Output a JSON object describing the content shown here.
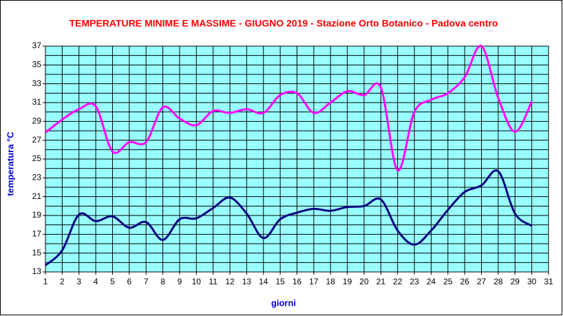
{
  "chart_data": {
    "type": "line",
    "title": "TEMPERATURE MINIME E MASSIME  - GIUGNO 2019 - Stazione Orto Botanico - Padova centro",
    "x_label": "giorni",
    "y_label": "temperatura °C",
    "x": [
      1,
      2,
      3,
      4,
      5,
      6,
      7,
      8,
      9,
      10,
      11,
      12,
      13,
      14,
      15,
      16,
      17,
      18,
      19,
      20,
      21,
      22,
      23,
      24,
      25,
      26,
      27,
      28,
      29,
      30
    ],
    "series": [
      {
        "color": "#ff00ff",
        "values": [
          27.8,
          29.2,
          30.3,
          30.6,
          25.8,
          26.8,
          26.8,
          30.5,
          29.3,
          28.6,
          30.1,
          29.9,
          30.3,
          29.9,
          31.8,
          32.0,
          29.9,
          31.0,
          32.2,
          31.8,
          32.6,
          23.8,
          30.0,
          31.3,
          32.0,
          33.7,
          37.0,
          31.5,
          27.9,
          31.1
        ]
      },
      {
        "color": "#000080",
        "values": [
          13.7,
          15.3,
          19.1,
          18.4,
          18.9,
          17.7,
          18.3,
          16.4,
          18.6,
          18.7,
          19.8,
          20.9,
          19.2,
          16.6,
          18.6,
          19.3,
          19.7,
          19.5,
          19.9,
          20.0,
          20.7,
          17.4,
          15.9,
          17.4,
          19.6,
          21.5,
          22.2,
          23.7,
          19.2,
          17.9
        ]
      }
    ],
    "xlim": [
      1,
      31
    ],
    "xticks": [
      1,
      2,
      3,
      4,
      5,
      6,
      7,
      8,
      9,
      10,
      11,
      12,
      13,
      14,
      15,
      16,
      17,
      18,
      19,
      20,
      21,
      22,
      23,
      24,
      25,
      26,
      27,
      28,
      29,
      30,
      31
    ],
    "ylim": [
      13,
      37
    ],
    "yticks": [
      13,
      15,
      17,
      19,
      21,
      23,
      25,
      27,
      29,
      31,
      33,
      35,
      37
    ],
    "yminorticks": [
      14,
      16,
      18,
      20,
      22,
      24,
      26,
      28,
      30,
      32,
      34,
      36
    ],
    "grid": true,
    "smooth": true
  }
}
